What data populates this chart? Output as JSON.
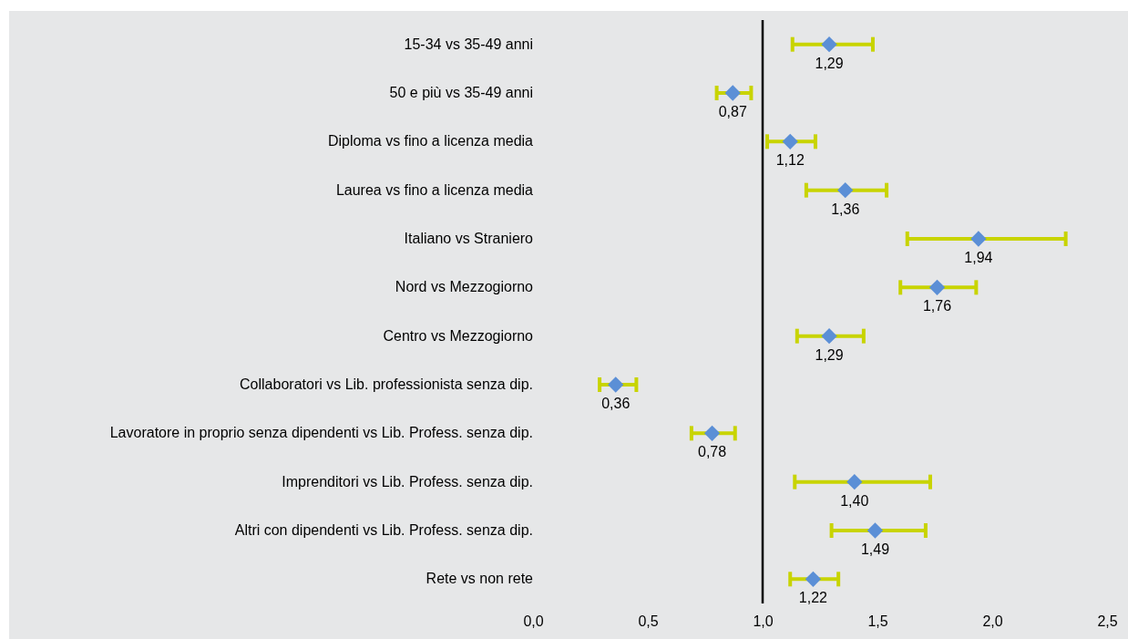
{
  "chart_data": {
    "type": "scatter",
    "orientation": "horizontal",
    "marker": "diamond",
    "grid": false,
    "categories": [
      "15-34 vs 35-49 anni ",
      "50 e più vs 35-49 anni",
      "Diploma vs fino a licenza media",
      "Laurea vs fino a licenza media",
      "Italiano vs Straniero",
      "Nord vs Mezzogiorno",
      "Centro vs Mezzogiorno",
      "Collaboratori vs Lib. professionista senza dip.",
      "Lavoratore in proprio senza dipendenti vs Lib. Profess. senza dip.",
      "Imprenditori vs Lib. Profess. senza dip.",
      "Altri con dipendenti vs Lib. Profess. senza dip.",
      "Rete vs non rete"
    ],
    "series": [
      {
        "color": "#5b8fd6",
        "values": [
          1.29,
          0.87,
          1.12,
          1.36,
          1.94,
          1.76,
          1.29,
          0.36,
          0.78,
          1.4,
          1.49,
          1.22
        ],
        "errors": [
          [
            1.13,
            1.48
          ],
          [
            0.8,
            0.95
          ],
          [
            1.02,
            1.23
          ],
          [
            1.19,
            1.54
          ],
          [
            1.63,
            2.32
          ],
          [
            1.6,
            1.93
          ],
          [
            1.15,
            1.44
          ],
          [
            0.29,
            0.45
          ],
          [
            0.69,
            0.88
          ],
          [
            1.14,
            1.73
          ],
          [
            1.3,
            1.71
          ],
          [
            1.12,
            1.33
          ]
        ],
        "value_labels": [
          "1,29",
          "0,87",
          "1,12",
          "1,36",
          "1,94",
          "1,76",
          "1,29",
          "0,36",
          "0,78",
          "1,40",
          "1,49",
          "1,22"
        ]
      }
    ],
    "xlim": [
      0,
      2.5
    ],
    "xticks": [
      {
        "value": 0,
        "label": "0,0"
      },
      {
        "value": 0.5,
        "label": "0,5"
      },
      {
        "value": 1,
        "label": "1,0"
      },
      {
        "value": 1.5,
        "label": "1,5"
      },
      {
        "value": 2,
        "label": "2,0"
      },
      {
        "value": 2.5,
        "label": "2,5"
      }
    ],
    "ref_lines": [
      {
        "axis": "x",
        "value": 1,
        "color": "#000000"
      }
    ]
  }
}
